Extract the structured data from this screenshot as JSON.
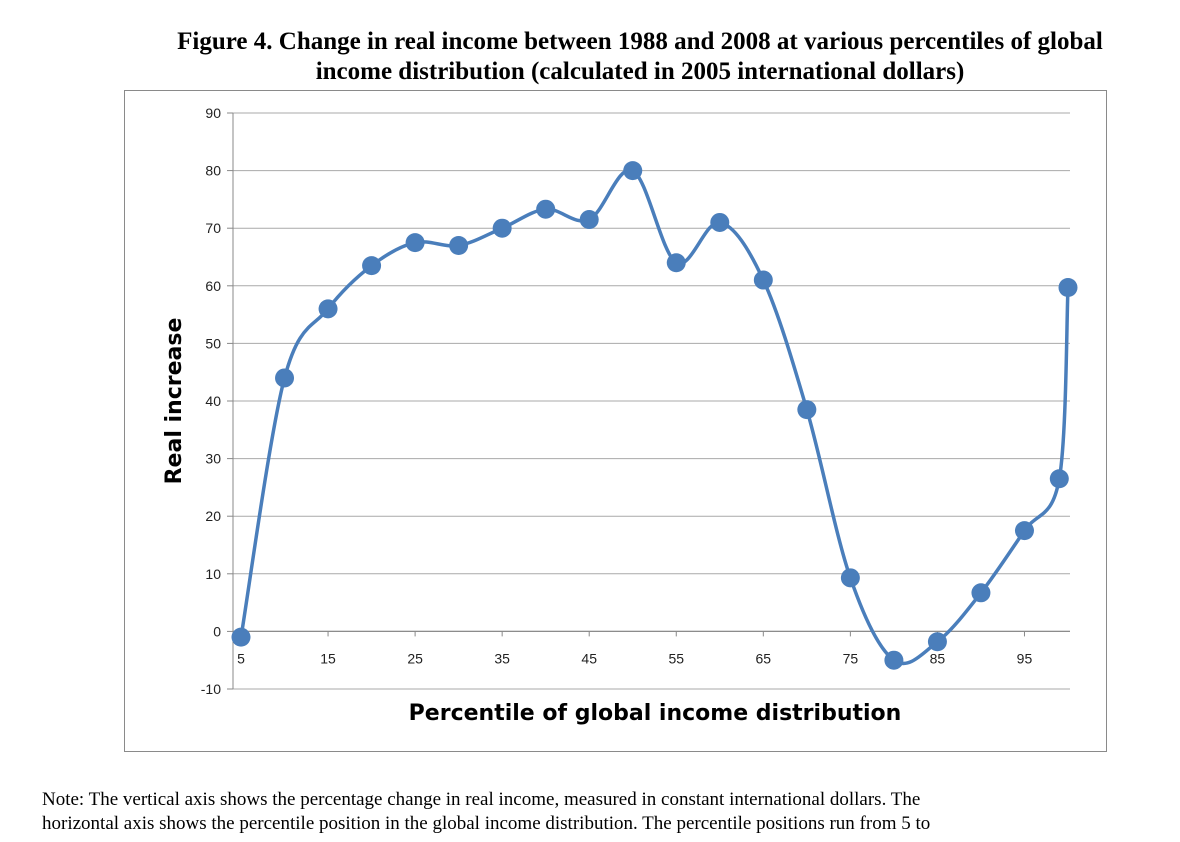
{
  "figure": {
    "title_line1": "Figure 4. Change in real income between 1988 and 2008 at various percentiles of global",
    "title_line2": "income distribution (calculated in 2005 international dollars)"
  },
  "note": {
    "line1": "Note: The vertical axis shows the percentage change in real income, measured in constant international dollars. The",
    "line2": "horizontal axis shows the percentile position in the global income distribution. The percentile positions run from 5 to"
  },
  "chart_data": {
    "type": "line",
    "xlabel": "Percentile of global income distribution",
    "ylabel": "Real increase",
    "xlim": [
      5,
      100
    ],
    "ylim": [
      -10,
      90
    ],
    "x_ticks": [
      "5",
      "15",
      "25",
      "35",
      "45",
      "55",
      "65",
      "75",
      "85",
      "95"
    ],
    "y_ticks": [
      "90",
      "80",
      "70",
      "60",
      "50",
      "40",
      "30",
      "20",
      "10",
      "0",
      "-10"
    ],
    "grid": "horizontal",
    "legend": "none",
    "line_color": "#4a7ebb",
    "smooth": true,
    "series": [
      {
        "x": [
          5,
          10,
          15,
          20,
          25,
          30,
          35,
          40,
          45,
          50,
          55,
          60,
          65,
          70,
          75,
          80,
          85,
          90,
          95,
          99,
          100
        ],
        "y": [
          -1,
          44,
          56,
          63.5,
          67.5,
          67,
          70,
          73.3,
          71.5,
          80,
          64,
          71,
          61,
          38.5,
          9.3,
          -5,
          -1.8,
          6.7,
          17.5,
          26.5,
          59.7
        ]
      }
    ]
  }
}
